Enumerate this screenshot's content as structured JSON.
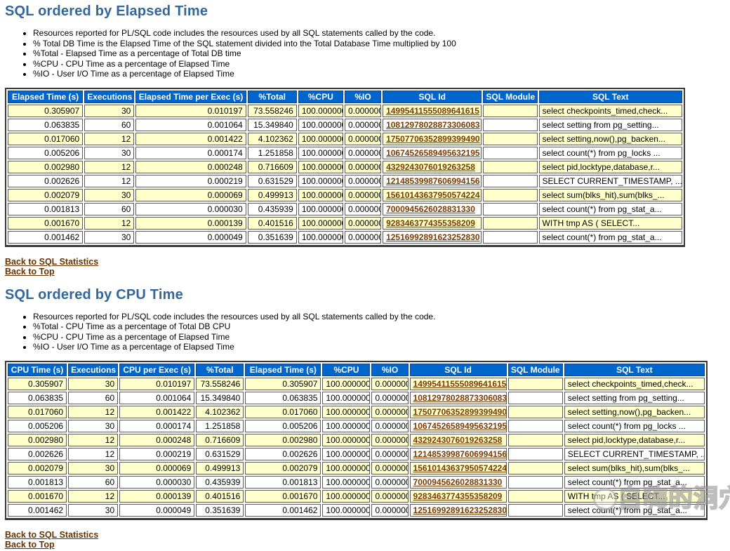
{
  "colors": {
    "title": "#336699",
    "table_header_bg": "#0066CC",
    "table_header_text": "#FFFFFF",
    "row_alt_bg": "#FFFFCC",
    "link": "#663300",
    "sql_id_link": "#7A3B00"
  },
  "sections": [
    {
      "title": "SQL ordered by Elapsed Time",
      "bullets": [
        "Resources reported for PL/SQL code includes the resources used by all SQL statements called by the code.",
        "% Total DB Time is the Elapsed Time of the SQL statement divided into the Total Database Time multiplied by 100",
        "%Total - Elapsed Time as a percentage of Total DB time",
        "%CPU - CPU Time as a percentage of Elapsed Time",
        "%IO - User I/O Time as a percentage of Elapsed Time"
      ],
      "table": {
        "headers": [
          "Elapsed Time (s)",
          "Executions",
          "Elapsed Time per Exec (s)",
          "%Total",
          "%CPU",
          "%IO",
          "SQL Id",
          "SQL Module",
          "SQL Text"
        ],
        "sql_id_col": 6,
        "rows": [
          [
            "0.305907",
            "30",
            "0.010197",
            "73.558246",
            "100.000000",
            "0.000000",
            "14995411555089641615",
            "",
            "select checkpoints_timed,check..."
          ],
          [
            "0.063835",
            "60",
            "0.001064",
            "15.349840",
            "100.000000",
            "0.000000",
            "10812978028873306083",
            "",
            "select setting from pg_setting..."
          ],
          [
            "0.017060",
            "12",
            "0.001422",
            "4.102362",
            "100.000000",
            "0.000000",
            "17507706352899399490",
            "",
            "select setting,now(),pg_backen..."
          ],
          [
            "0.005206",
            "30",
            "0.000174",
            "1.251858",
            "100.000000",
            "0.000000",
            "10674526589495632195",
            "",
            "select count(*) from pg_locks ..."
          ],
          [
            "0.002980",
            "12",
            "0.000248",
            "0.716609",
            "100.000000",
            "0.000000",
            "4329243076019263258",
            "",
            "select pid,locktype,database,r..."
          ],
          [
            "0.002626",
            "12",
            "0.000219",
            "0.631529",
            "100.000000",
            "0.000000",
            "12148539987606994156",
            "",
            "SELECT CURRENT_TIMESTAMP, ..."
          ],
          [
            "0.002079",
            "30",
            "0.000069",
            "0.499913",
            "100.000000",
            "0.000000",
            "15610143637950574224",
            "",
            "select sum(blks_hit),sum(blks_..."
          ],
          [
            "0.001813",
            "60",
            "0.000030",
            "0.435939",
            "100.000000",
            "0.000000",
            "7000945626028831330",
            "",
            "select count(*) from pg_stat_a..."
          ],
          [
            "0.001670",
            "12",
            "0.000139",
            "0.401516",
            "100.000000",
            "0.000000",
            "9283463774355358209",
            "",
            "WITH tmp AS ( SELECT..."
          ],
          [
            "0.001462",
            "30",
            "0.000049",
            "0.351639",
            "100.000000",
            "0.000000",
            "12516992891623252830",
            "",
            "select count(*) from pg_stat_a..."
          ]
        ]
      },
      "links": [
        "Back to SQL Statistics",
        "Back to Top"
      ]
    },
    {
      "title": "SQL ordered by CPU Time",
      "bullets": [
        "Resources reported for PL/SQL code includes the resources used by all SQL statements called by the code.",
        "%Total - CPU Time as a percentage of Total DB CPU",
        "%CPU - CPU Time as a percentage of Elapsed Time",
        "%IO - User I/O Time as a percentage of Elapsed Time"
      ],
      "table": {
        "headers": [
          "CPU Time (s)",
          "Executions",
          "CPU per Exec (s)",
          "%Total",
          "Elapsed Time (s)",
          "%CPU",
          "%IO",
          "SQL Id",
          "SQL Module",
          "SQL Text"
        ],
        "sql_id_col": 7,
        "rows": [
          [
            "0.305907",
            "30",
            "0.010197",
            "73.558246",
            "0.305907",
            "100.000000",
            "0.000000",
            "14995411555089641615",
            "",
            "select checkpoints_timed,check..."
          ],
          [
            "0.063835",
            "60",
            "0.001064",
            "15.349840",
            "0.063835",
            "100.000000",
            "0.000000",
            "10812978028873306083",
            "",
            "select setting from pg_setting..."
          ],
          [
            "0.017060",
            "12",
            "0.001422",
            "4.102362",
            "0.017060",
            "100.000000",
            "0.000000",
            "17507706352899399490",
            "",
            "select setting,now(),pg_backen..."
          ],
          [
            "0.005206",
            "30",
            "0.000174",
            "1.251858",
            "0.005206",
            "100.000000",
            "0.000000",
            "10674526589495632195",
            "",
            "select count(*) from pg_locks ..."
          ],
          [
            "0.002980",
            "12",
            "0.000248",
            "0.716609",
            "0.002980",
            "100.000000",
            "0.000000",
            "4329243076019263258",
            "",
            "select pid,locktype,database,r..."
          ],
          [
            "0.002626",
            "12",
            "0.000219",
            "0.631529",
            "0.002626",
            "100.000000",
            "0.000000",
            "12148539987606994156",
            "",
            "SELECT CURRENT_TIMESTAMP, ..."
          ],
          [
            "0.002079",
            "30",
            "0.000069",
            "0.499913",
            "0.002079",
            "100.000000",
            "0.000000",
            "15610143637950574224",
            "",
            "select sum(blks_hit),sum(blks_..."
          ],
          [
            "0.001813",
            "60",
            "0.000030",
            "0.435939",
            "0.001813",
            "100.000000",
            "0.000000",
            "7000945626028831330",
            "",
            "select count(*) from pg_stat_a..."
          ],
          [
            "0.001670",
            "12",
            "0.000139",
            "0.401516",
            "0.001670",
            "100.000000",
            "0.000000",
            "9283463774355358209",
            "",
            "WITH tmp AS ( SELECT..."
          ],
          [
            "0.001462",
            "30",
            "0.000049",
            "0.351639",
            "0.001462",
            "100.000000",
            "0.000000",
            "12516992891623252830",
            "",
            "select count(*) from pg_stat_a..."
          ]
        ]
      },
      "links": [
        "Back to SQL Statistics",
        "Back to Top"
      ]
    }
  ],
  "watermark": {
    "text": "自嗨的洞穴",
    "icon": "speech-bubble-icon"
  }
}
